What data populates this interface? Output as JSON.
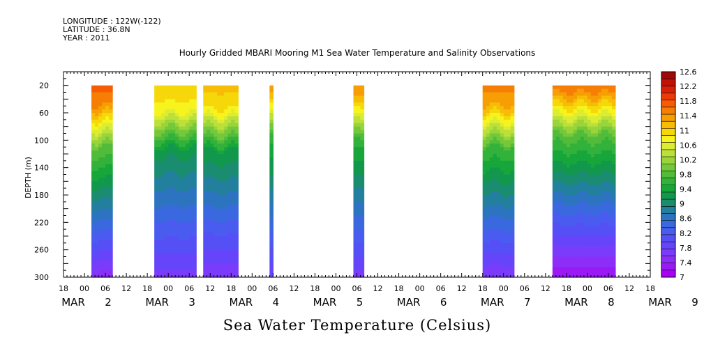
{
  "header": {
    "longitude": "LONGITUDE : 122W(-122)",
    "latitude": "LATITUDE : 36.8N",
    "year": "YEAR : 2011"
  },
  "chart_data": {
    "type": "heatmap",
    "title": "Hourly Gridded MBARI Mooring M1 Sea Water Temperature and Salinity Observations",
    "subtitle": "Sea Water Temperature (Celsius)",
    "ylabel": "DEPTH (m)",
    "ylim": [
      300,
      0
    ],
    "yticks": [
      20,
      60,
      100,
      140,
      180,
      220,
      260,
      300
    ],
    "x_hour_ticks": [
      "18",
      "00",
      "06",
      "12",
      "18",
      "00",
      "06",
      "12",
      "18",
      "00",
      "06",
      "12",
      "18",
      "00",
      "06",
      "12",
      "18",
      "00",
      "06",
      "12",
      "18",
      "00",
      "06",
      "12",
      "18",
      "00",
      "06",
      "12",
      "18"
    ],
    "x_day_labels": [
      {
        "text": "MAR",
        "day": "2"
      },
      {
        "text": "MAR",
        "day": "3"
      },
      {
        "text": "MAR",
        "day": "4"
      },
      {
        "text": "MAR",
        "day": "5"
      },
      {
        "text": "MAR",
        "day": "6"
      },
      {
        "text": "MAR",
        "day": "7"
      },
      {
        "text": "MAR",
        "day": "8"
      },
      {
        "text": "MAR",
        "day": "9"
      }
    ],
    "xlim_hours_from_mar1_18h": [
      0,
      168
    ],
    "data_segments": [
      {
        "start": "MAR 2 02:00",
        "end": "MAR 2 08:00",
        "surface_temp": 11.9,
        "mixed_layer_depth": 70,
        "bottom_temp": 7.5
      },
      {
        "start": "MAR 2 20:00",
        "end": "MAR 3 08:00",
        "surface_temp": 11.2,
        "mixed_layer_depth": 75,
        "bottom_temp": 7.7
      },
      {
        "start": "MAR 3 10:00",
        "end": "MAR 3 20:00",
        "surface_temp": 11.3,
        "mixed_layer_depth": 75,
        "bottom_temp": 7.6
      },
      {
        "start": "MAR 4 05:00",
        "end": "MAR 4 06:00",
        "surface_temp": 11.6,
        "mixed_layer_depth": 60,
        "bottom_temp": 7.8
      },
      {
        "start": "MAR 5 05:00",
        "end": "MAR 5 08:00",
        "surface_temp": 11.6,
        "mixed_layer_depth": 65,
        "bottom_temp": 7.7
      },
      {
        "start": "MAR 6 18:00",
        "end": "MAR 7 03:00",
        "surface_temp": 11.7,
        "mixed_layer_depth": 70,
        "bottom_temp": 7.6
      },
      {
        "start": "MAR 7 14:00",
        "end": "MAR 8 08:00",
        "surface_temp": 11.8,
        "mixed_layer_depth": 55,
        "bottom_temp": 7.2
      }
    ],
    "colorbar": {
      "labels": [
        "12.6",
        "12.2",
        "11.8",
        "11.4",
        "11",
        "10.6",
        "10.2",
        "9.8",
        "9.4",
        "9",
        "8.6",
        "8.2",
        "7.8",
        "7.4",
        "7"
      ],
      "levels": [
        7.0,
        7.2,
        7.4,
        7.6,
        7.8,
        8.0,
        8.2,
        8.4,
        8.6,
        8.8,
        9.0,
        9.2,
        9.4,
        9.6,
        9.8,
        10.0,
        10.2,
        10.4,
        10.6,
        10.8,
        11.0,
        11.2,
        11.4,
        11.6,
        11.8,
        12.0,
        12.2,
        12.4,
        12.6
      ],
      "colors": [
        "#a600f2",
        "#9a1af6",
        "#8c2ef8",
        "#7a3cfa",
        "#6644fa",
        "#5550f6",
        "#4a5cf0",
        "#3a68de",
        "#2c74c0",
        "#22809e",
        "#1a8c70",
        "#12984c",
        "#16a63a",
        "#32b23a",
        "#52bc3a",
        "#74c83a",
        "#98d43a",
        "#bce03a",
        "#dcec32",
        "#f6f41c",
        "#f6d80a",
        "#f6bc06",
        "#f69e04",
        "#f67e04",
        "#f65c04",
        "#ec3a06",
        "#d82008",
        "#be1208",
        "#a00808"
      ]
    }
  }
}
